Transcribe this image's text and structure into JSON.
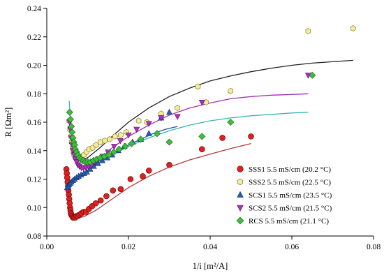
{
  "chart_data": {
    "type": "scatter",
    "xlabel": "1/i [m²/A]",
    "ylabel": "R [Ωm²]",
    "xlim": [
      0,
      0.08
    ],
    "ylim": [
      0.08,
      0.24
    ],
    "x_ticks": [
      "0.00",
      "0.02",
      "0.04",
      "0.06",
      "0.08"
    ],
    "y_ticks": [
      "0.08",
      "0.10",
      "0.12",
      "0.14",
      "0.16",
      "0.18",
      "0.20",
      "0.22",
      "0.24"
    ],
    "grid": false,
    "legend_position": "lower-right",
    "series": [
      {
        "name": "SSS1 5.5 mS/cm (20.2 °C)",
        "marker": "circle",
        "color": "#e02020",
        "fit_color": "#b03a3a",
        "points": [
          [
            0.0048,
            0.127
          ],
          [
            0.0049,
            0.124
          ],
          [
            0.005,
            0.121
          ],
          [
            0.0051,
            0.118
          ],
          [
            0.0052,
            0.115
          ],
          [
            0.0053,
            0.112
          ],
          [
            0.0054,
            0.109
          ],
          [
            0.0055,
            0.106
          ],
          [
            0.0056,
            0.103
          ],
          [
            0.0057,
            0.1
          ],
          [
            0.0058,
            0.098
          ],
          [
            0.0059,
            0.096
          ],
          [
            0.006,
            0.095
          ],
          [
            0.0062,
            0.094
          ],
          [
            0.0064,
            0.093
          ],
          [
            0.0067,
            0.093
          ],
          [
            0.007,
            0.093
          ],
          [
            0.0073,
            0.094
          ],
          [
            0.0076,
            0.094
          ],
          [
            0.008,
            0.095
          ],
          [
            0.0085,
            0.096
          ],
          [
            0.009,
            0.097
          ],
          [
            0.0096,
            0.097
          ],
          [
            0.0103,
            0.099
          ],
          [
            0.0111,
            0.101
          ],
          [
            0.012,
            0.103
          ],
          [
            0.0132,
            0.105
          ],
          [
            0.0146,
            0.108
          ],
          [
            0.0162,
            0.112
          ],
          [
            0.0181,
            0.113
          ],
          [
            0.0205,
            0.12
          ],
          [
            0.0235,
            0.122
          ],
          [
            0.025,
            0.126
          ],
          [
            0.03,
            0.13
          ],
          [
            0.038,
            0.141
          ],
          [
            0.043,
            0.149
          ],
          [
            0.05,
            0.15
          ]
        ],
        "fit": [
          [
            0.0058,
            0.0945
          ],
          [
            0.007,
            0.0925
          ],
          [
            0.009,
            0.0935
          ],
          [
            0.012,
            0.098
          ],
          [
            0.016,
            0.106
          ],
          [
            0.02,
            0.114
          ],
          [
            0.025,
            0.122
          ],
          [
            0.03,
            0.1285
          ],
          [
            0.035,
            0.1335
          ],
          [
            0.04,
            0.1375
          ],
          [
            0.045,
            0.1415
          ],
          [
            0.05,
            0.145
          ]
        ]
      },
      {
        "name": "SSS2 5.5 mS/cm (22.5 °C)",
        "marker": "hexagon",
        "color": "#f7eb9e",
        "fit_color": "#222222",
        "points": [
          [
            0.0055,
            0.161
          ],
          [
            0.0057,
            0.155
          ],
          [
            0.0059,
            0.15
          ],
          [
            0.0061,
            0.146
          ],
          [
            0.0063,
            0.142
          ],
          [
            0.0065,
            0.139
          ],
          [
            0.0067,
            0.137
          ],
          [
            0.007,
            0.135
          ],
          [
            0.0073,
            0.134
          ],
          [
            0.0077,
            0.134
          ],
          [
            0.0081,
            0.135
          ],
          [
            0.0086,
            0.136
          ],
          [
            0.0091,
            0.137
          ],
          [
            0.0097,
            0.139
          ],
          [
            0.0104,
            0.141
          ],
          [
            0.0112,
            0.142
          ],
          [
            0.0121,
            0.144
          ],
          [
            0.0131,
            0.146
          ],
          [
            0.0142,
            0.147
          ],
          [
            0.0154,
            0.148
          ],
          [
            0.0167,
            0.15
          ],
          [
            0.0181,
            0.151
          ],
          [
            0.0195,
            0.153
          ],
          [
            0.0225,
            0.161
          ],
          [
            0.0245,
            0.16
          ],
          [
            0.028,
            0.166
          ],
          [
            0.032,
            0.17
          ],
          [
            0.037,
            0.185
          ],
          [
            0.039,
            0.174
          ],
          [
            0.045,
            0.182
          ],
          [
            0.064,
            0.224
          ],
          [
            0.075,
            0.226
          ]
        ],
        "fit": [
          [
            0.006,
            0.158
          ],
          [
            0.007,
            0.135
          ],
          [
            0.008,
            0.133
          ],
          [
            0.01,
            0.135
          ],
          [
            0.013,
            0.142
          ],
          [
            0.016,
            0.15
          ],
          [
            0.02,
            0.16
          ],
          [
            0.025,
            0.17
          ],
          [
            0.03,
            0.178
          ],
          [
            0.035,
            0.184
          ],
          [
            0.04,
            0.189
          ],
          [
            0.045,
            0.1925
          ],
          [
            0.05,
            0.1955
          ],
          [
            0.055,
            0.198
          ],
          [
            0.06,
            0.2
          ],
          [
            0.065,
            0.2015
          ],
          [
            0.07,
            0.2025
          ],
          [
            0.075,
            0.2035
          ]
        ]
      },
      {
        "name": "SCS1 5.5 mS/cm (23.5 °C)",
        "marker": "triangle-up",
        "color": "#2a5db0",
        "fit_color": "#2a4aa0",
        "points": [
          [
            0.005,
            0.114
          ],
          [
            0.0052,
            0.115
          ],
          [
            0.0054,
            0.116
          ],
          [
            0.0057,
            0.117
          ],
          [
            0.006,
            0.118
          ],
          [
            0.0064,
            0.119
          ],
          [
            0.0068,
            0.12
          ],
          [
            0.0073,
            0.121
          ],
          [
            0.0078,
            0.122
          ],
          [
            0.0084,
            0.123
          ],
          [
            0.0091,
            0.124
          ],
          [
            0.0098,
            0.125
          ],
          [
            0.0106,
            0.127
          ],
          [
            0.0115,
            0.129
          ],
          [
            0.0125,
            0.131
          ],
          [
            0.0136,
            0.133
          ],
          [
            0.0148,
            0.135
          ],
          [
            0.016,
            0.137
          ],
          [
            0.0175,
            0.14
          ],
          [
            0.019,
            0.143
          ],
          [
            0.021,
            0.146
          ],
          [
            0.023,
            0.148
          ],
          [
            0.025,
            0.152
          ],
          [
            0.028,
            0.163
          ],
          [
            0.03,
            0.167
          ]
        ],
        "fit": [
          [
            0.005,
            0.114
          ],
          [
            0.008,
            0.122
          ],
          [
            0.011,
            0.128
          ],
          [
            0.014,
            0.134
          ],
          [
            0.017,
            0.139
          ],
          [
            0.02,
            0.144
          ],
          [
            0.023,
            0.148
          ],
          [
            0.026,
            0.152
          ],
          [
            0.029,
            0.155
          ],
          [
            0.032,
            0.157
          ]
        ]
      },
      {
        "name": "SCS2 5.5 mS/cm (21.5 °C)",
        "marker": "triangle-down",
        "color": "#b030c0",
        "fit_color": "#a030b0",
        "points": [
          [
            0.0056,
            0.16
          ],
          [
            0.0058,
            0.155
          ],
          [
            0.006,
            0.149
          ],
          [
            0.0062,
            0.144
          ],
          [
            0.0064,
            0.14
          ],
          [
            0.0067,
            0.137
          ],
          [
            0.007,
            0.134
          ],
          [
            0.0073,
            0.132
          ],
          [
            0.0076,
            0.13
          ],
          [
            0.008,
            0.129
          ],
          [
            0.0085,
            0.128
          ],
          [
            0.009,
            0.128
          ],
          [
            0.0096,
            0.128
          ],
          [
            0.0102,
            0.129
          ],
          [
            0.011,
            0.13
          ],
          [
            0.0118,
            0.132
          ],
          [
            0.0127,
            0.134
          ],
          [
            0.0137,
            0.136
          ],
          [
            0.015,
            0.139
          ],
          [
            0.0165,
            0.143
          ],
          [
            0.018,
            0.147
          ],
          [
            0.02,
            0.151
          ],
          [
            0.022,
            0.155
          ],
          [
            0.025,
            0.159
          ],
          [
            0.028,
            0.163
          ],
          [
            0.032,
            0.164
          ],
          [
            0.038,
            0.174
          ],
          [
            0.064,
            0.193
          ]
        ],
        "fit": [
          [
            0.006,
            0.149
          ],
          [
            0.007,
            0.133
          ],
          [
            0.008,
            0.128
          ],
          [
            0.01,
            0.128
          ],
          [
            0.013,
            0.134
          ],
          [
            0.016,
            0.142
          ],
          [
            0.02,
            0.15
          ],
          [
            0.025,
            0.158
          ],
          [
            0.03,
            0.165
          ],
          [
            0.035,
            0.17
          ],
          [
            0.04,
            0.1735
          ],
          [
            0.045,
            0.1765
          ],
          [
            0.05,
            0.178
          ],
          [
            0.055,
            0.179
          ],
          [
            0.06,
            0.1795
          ],
          [
            0.064,
            0.18
          ]
        ]
      },
      {
        "name": "RCS 5.5 mS/cm (21.1 °C)",
        "marker": "diamond",
        "color": "#3cbf3c",
        "fit_color": "#3ab5b5",
        "points": [
          [
            0.0056,
            0.167
          ],
          [
            0.0058,
            0.162
          ],
          [
            0.006,
            0.157
          ],
          [
            0.0062,
            0.153
          ],
          [
            0.0064,
            0.149
          ],
          [
            0.0066,
            0.146
          ],
          [
            0.0068,
            0.144
          ],
          [
            0.007,
            0.141
          ],
          [
            0.0073,
            0.139
          ],
          [
            0.0076,
            0.137
          ],
          [
            0.008,
            0.135
          ],
          [
            0.0084,
            0.134
          ],
          [
            0.0089,
            0.133
          ],
          [
            0.0094,
            0.132
          ],
          [
            0.01,
            0.132
          ],
          [
            0.0107,
            0.132
          ],
          [
            0.0114,
            0.133
          ],
          [
            0.0122,
            0.134
          ],
          [
            0.0131,
            0.135
          ],
          [
            0.0141,
            0.136
          ],
          [
            0.0152,
            0.137
          ],
          [
            0.0164,
            0.139
          ],
          [
            0.0177,
            0.141
          ],
          [
            0.0192,
            0.143
          ],
          [
            0.0208,
            0.145
          ],
          [
            0.023,
            0.148
          ],
          [
            0.027,
            0.152
          ],
          [
            0.03,
            0.146
          ],
          [
            0.038,
            0.15
          ],
          [
            0.045,
            0.16
          ],
          [
            0.065,
            0.193
          ]
        ],
        "fit": [
          [
            0.0055,
            0.175
          ],
          [
            0.006,
            0.152
          ],
          [
            0.007,
            0.139
          ],
          [
            0.008,
            0.133
          ],
          [
            0.01,
            0.13
          ],
          [
            0.013,
            0.132
          ],
          [
            0.016,
            0.137
          ],
          [
            0.02,
            0.143
          ],
          [
            0.025,
            0.149
          ],
          [
            0.03,
            0.154
          ],
          [
            0.035,
            0.158
          ],
          [
            0.04,
            0.161
          ],
          [
            0.045,
            0.163
          ],
          [
            0.05,
            0.1645
          ],
          [
            0.055,
            0.1655
          ],
          [
            0.06,
            0.1665
          ],
          [
            0.064,
            0.167
          ]
        ]
      }
    ]
  }
}
